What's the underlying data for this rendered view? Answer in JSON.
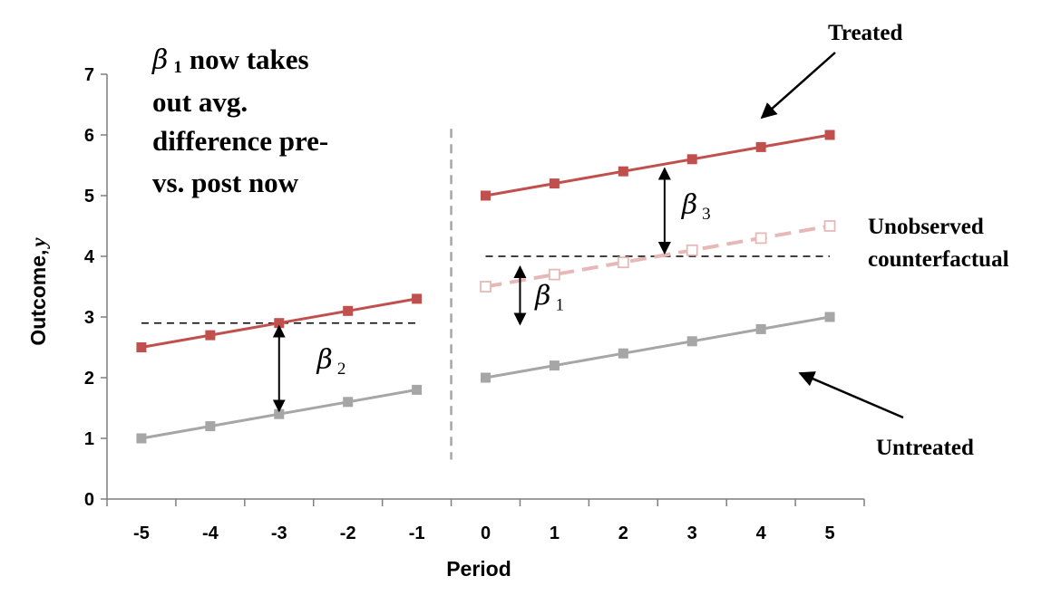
{
  "chart_data": {
    "type": "line",
    "xlabel": "Period",
    "ylabel": "Outcome,",
    "ylabel_var": "y",
    "ylim": [
      0,
      7
    ],
    "xlim": [
      -5.5,
      5.5
    ],
    "x_ticks": [
      "-5",
      "-4",
      "-3",
      "-2",
      "-1",
      "0",
      "1",
      "2",
      "3",
      "4",
      "5"
    ],
    "y_ticks": [
      "0",
      "1",
      "2",
      "3",
      "4",
      "5",
      "6",
      "7"
    ],
    "grid": false,
    "series": [
      {
        "name": "Treated",
        "segment": "pre",
        "color": "#c0504d",
        "style": "solid",
        "marker": "filled-square",
        "x": [
          -5,
          -4,
          -3,
          -2,
          -1
        ],
        "y": [
          2.5,
          2.7,
          2.9,
          3.1,
          3.3
        ]
      },
      {
        "name": "Treated",
        "segment": "post",
        "color": "#c0504d",
        "style": "solid",
        "marker": "filled-square",
        "x": [
          0,
          1,
          2,
          3,
          4,
          5
        ],
        "y": [
          5.0,
          5.2,
          5.4,
          5.6,
          5.8,
          6.0
        ]
      },
      {
        "name": "Untreated",
        "segment": "pre",
        "color": "#a6a6a6",
        "style": "solid",
        "marker": "filled-square",
        "x": [
          -5,
          -4,
          -3,
          -2,
          -1
        ],
        "y": [
          1.0,
          1.2,
          1.4,
          1.6,
          1.8
        ]
      },
      {
        "name": "Untreated",
        "segment": "post",
        "color": "#a6a6a6",
        "style": "solid",
        "marker": "filled-square",
        "x": [
          0,
          1,
          2,
          3,
          4,
          5
        ],
        "y": [
          2.0,
          2.2,
          2.4,
          2.6,
          2.8,
          3.0
        ]
      },
      {
        "name": "Unobserved counterfactual",
        "segment": "post",
        "color": "#e6b9b8",
        "style": "dashed",
        "marker": "open-square",
        "x": [
          0,
          1,
          2,
          3,
          4,
          5
        ],
        "y": [
          3.5,
          3.7,
          3.9,
          4.1,
          4.3,
          4.5
        ]
      }
    ],
    "reference_lines": [
      {
        "x_from": -5,
        "x_to": -1,
        "y": 2.9
      },
      {
        "x_from": 0,
        "x_to": 5,
        "y": 4.0
      }
    ],
    "divider_x": -0.5,
    "divider_y": [
      0.65,
      6.1
    ],
    "beta_arrows": [
      {
        "symbol": "β",
        "subscript": "2",
        "x": -3,
        "y_from": 1.45,
        "y_to": 2.85,
        "label_x": -2.45,
        "label_y": 2.15
      },
      {
        "symbol": "β",
        "subscript": "3",
        "x": 2.6,
        "y_from": 4.05,
        "y_to": 5.45,
        "label_x": 2.85,
        "label_y": 4.7
      },
      {
        "symbol": "β",
        "subscript": "1",
        "x": 0.5,
        "y_from": 2.88,
        "y_to": 3.83,
        "label_x": 0.72,
        "label_y": 3.2
      }
    ],
    "annotations": {
      "treated": "Treated",
      "untreated": "Untreated",
      "counterfactual_line1": "Unobserved",
      "counterfactual_line2": "counterfactual",
      "note_symbol": "β",
      "note_subscript": "1",
      "note_line1": "now takes",
      "note_line2": "out avg.",
      "note_line3": "difference pre-",
      "note_line4": "vs. post now"
    }
  }
}
